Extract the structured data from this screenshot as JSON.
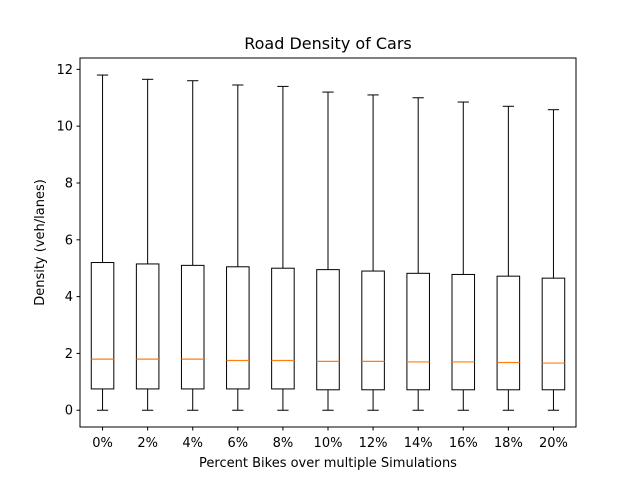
{
  "chart_data": {
    "type": "box",
    "title": "Road Density of Cars",
    "xlabel": "Percent Bikes over multiple Simulations",
    "ylabel": "Density (veh/lanes)",
    "ylim": [
      -0.59,
      12.4
    ],
    "yticks": [
      0,
      2,
      4,
      6,
      8,
      10,
      12
    ],
    "categories": [
      "0%",
      "2%",
      "4%",
      "6%",
      "8%",
      "10%",
      "12%",
      "14%",
      "16%",
      "18%",
      "20%"
    ],
    "boxes": [
      {
        "min": 0.0,
        "q1": 0.75,
        "median": 1.8,
        "q3": 5.2,
        "max": 11.8
      },
      {
        "min": 0.0,
        "q1": 0.75,
        "median": 1.8,
        "q3": 5.15,
        "max": 11.65
      },
      {
        "min": 0.0,
        "q1": 0.75,
        "median": 1.8,
        "q3": 5.1,
        "max": 11.6
      },
      {
        "min": 0.0,
        "q1": 0.75,
        "median": 1.75,
        "q3": 5.05,
        "max": 11.45
      },
      {
        "min": 0.0,
        "q1": 0.75,
        "median": 1.75,
        "q3": 5.0,
        "max": 11.4
      },
      {
        "min": 0.0,
        "q1": 0.72,
        "median": 1.72,
        "q3": 4.95,
        "max": 11.2
      },
      {
        "min": 0.0,
        "q1": 0.72,
        "median": 1.72,
        "q3": 4.9,
        "max": 11.1
      },
      {
        "min": 0.0,
        "q1": 0.72,
        "median": 1.7,
        "q3": 4.82,
        "max": 11.0
      },
      {
        "min": 0.0,
        "q1": 0.72,
        "median": 1.7,
        "q3": 4.78,
        "max": 10.85
      },
      {
        "min": 0.0,
        "q1": 0.72,
        "median": 1.68,
        "q3": 4.72,
        "max": 10.7
      },
      {
        "min": 0.0,
        "q1": 0.72,
        "median": 1.66,
        "q3": 4.65,
        "max": 10.58
      }
    ],
    "colors": {
      "box": "#000000",
      "median": "#ff7f0e"
    },
    "grid": false
  }
}
